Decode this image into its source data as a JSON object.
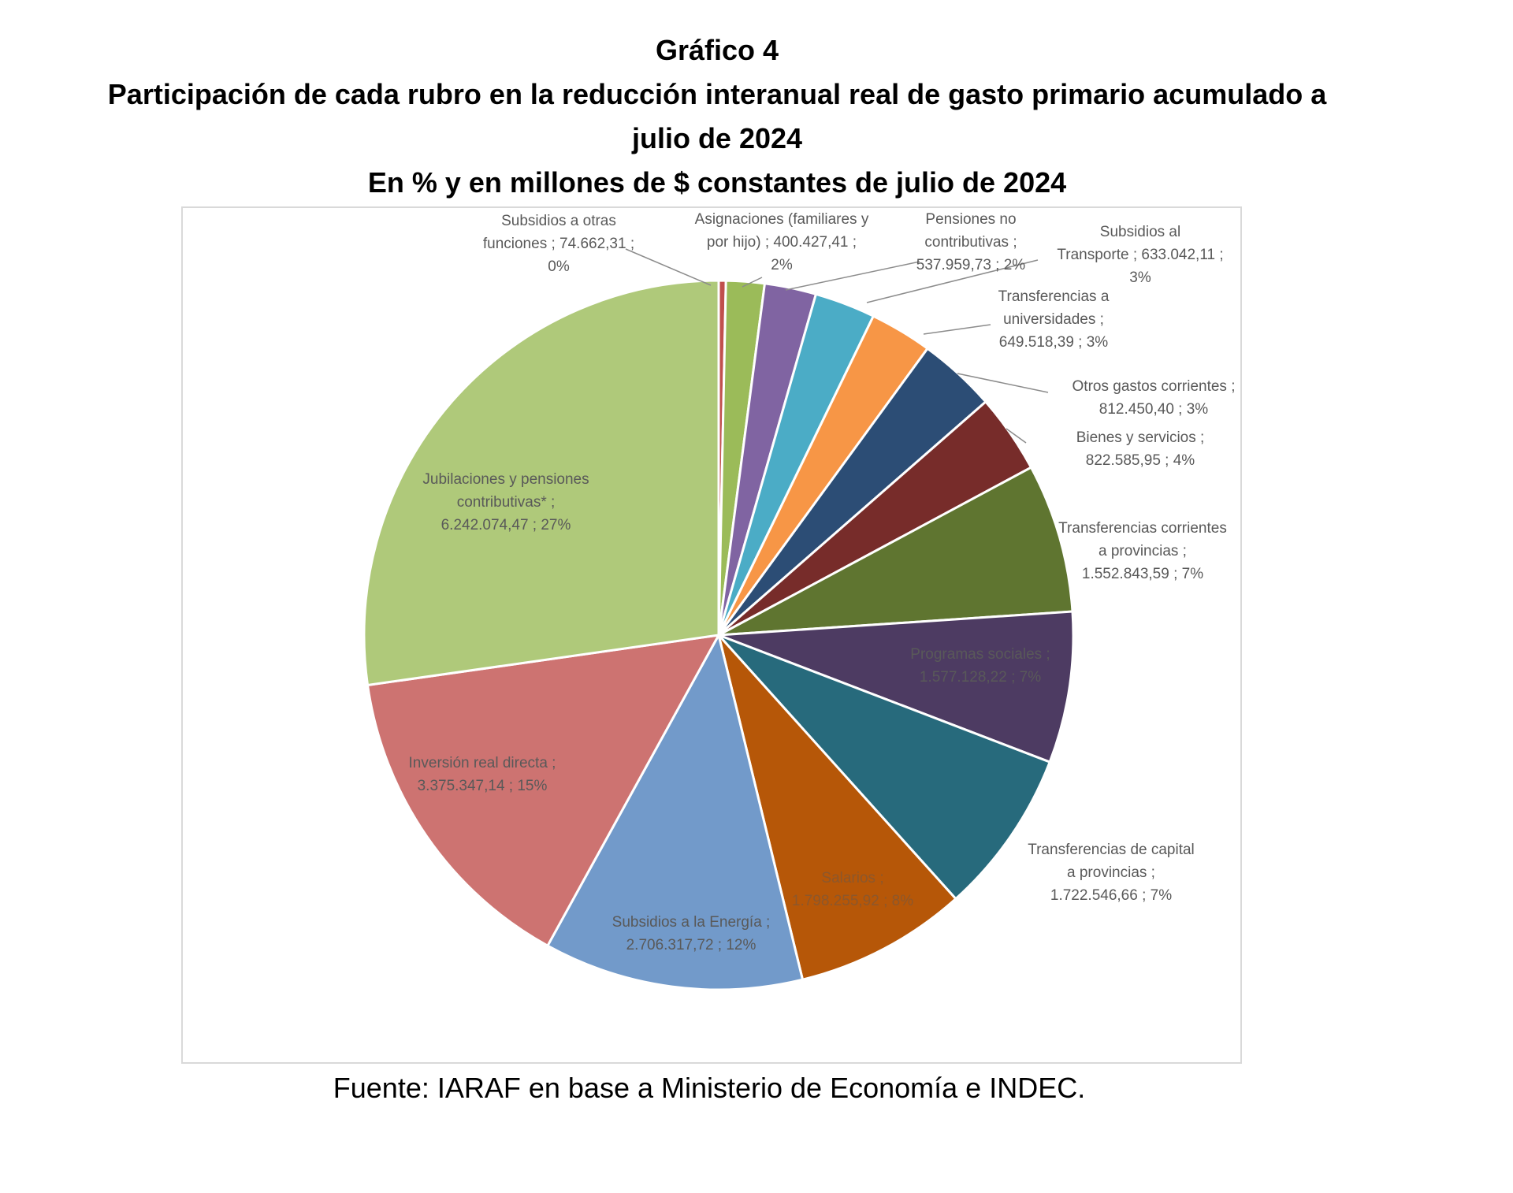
{
  "header": {
    "figure_number": "Gráfico 4",
    "title_line1": "Participación de cada rubro en la reducción interanual real de gasto primario acumulado a",
    "title_line2": "julio de 2024",
    "subtitle": "En % y en millones de $ constantes de julio de 2024"
  },
  "footer": {
    "source": "Fuente: IARAF en base a Ministerio de Economía e INDEC."
  },
  "chart_data": {
    "type": "pie",
    "title": "Participación de cada rubro en la reducción interanual real de gasto primario acumulado a julio de 2024",
    "subtitle": "En % y en millones de $ constantes de julio de 2024",
    "slices": [
      {
        "label": "Subsidios a otras funciones",
        "value": 74662.31,
        "percent": "0%",
        "color": "#c0504d"
      },
      {
        "label": "Asignaciones (familiares y por hijo)",
        "value": 400427.41,
        "percent": "2%",
        "color": "#9bbb59"
      },
      {
        "label": "Pensiones no contributivas",
        "value": 537959.73,
        "percent": "2%",
        "color": "#8064a2"
      },
      {
        "label": "Subsidios al Transporte",
        "value": 633042.11,
        "percent": "3%",
        "color": "#4bacc6"
      },
      {
        "label": "Transferencias a universidades",
        "value": 649518.39,
        "percent": "3%",
        "color": "#f79646"
      },
      {
        "label": "Otros gastos corrientes",
        "value": 812450.4,
        "percent": "3%",
        "color": "#2c4d75"
      },
      {
        "label": "Bienes y servicios",
        "value": 822585.95,
        "percent": "4%",
        "color": "#772c2a"
      },
      {
        "label": "Transferencias corrientes a provincias",
        "value": 1552843.59,
        "percent": "7%",
        "color": "#5f7530"
      },
      {
        "label": "Programas sociales",
        "value": 1577128.22,
        "percent": "7%",
        "color": "#4d3b62"
      },
      {
        "label": "Transferencias de capital a provincias",
        "value": 1722546.66,
        "percent": "7%",
        "color": "#276a7c"
      },
      {
        "label": "Salarios",
        "value": 1798255.92,
        "percent": "8%",
        "color": "#b65708"
      },
      {
        "label": "Subsidios a la Energía",
        "value": 2706317.72,
        "percent": "12%",
        "color": "#729aca"
      },
      {
        "label": "Inversión real directa",
        "value": 3375347.14,
        "percent": "15%",
        "color": "#cd7371"
      },
      {
        "label": "Jubilaciones y pensiones contributivas*",
        "value": 6242074.47,
        "percent": "27%",
        "color": "#afc97a"
      }
    ],
    "data_labels": [
      [
        "Subsidios a otras",
        "funciones ;  74.662,31 ;",
        "0%"
      ],
      [
        "Asignaciones (familiares y",
        "por hijo) ;  400.427,41 ;",
        "2%"
      ],
      [
        "Pensiones no",
        "contributivas ;",
        "537.959,73 ; 2%"
      ],
      [
        "Subsidios al",
        "Transporte ;  633.042,11 ;",
        "3%"
      ],
      [
        "Transferencias a",
        "universidades ;",
        "649.518,39 ; 3%"
      ],
      [
        "Otros gastos corrientes ;",
        "812.450,40 ; 3%"
      ],
      [
        "Bienes y servicios ;",
        "822.585,95 ; 4%"
      ],
      [
        "Transferencias corrientes",
        "a provincias ;",
        "1.552.843,59 ; 7%"
      ],
      [
        "Programas sociales ;",
        "1.577.128,22 ; 7%"
      ],
      [
        "Transferencias de capital",
        "a provincias ;",
        "1.722.546,66 ; 7%"
      ],
      [
        "Salarios ;",
        "1.798.255,92 ; 8%"
      ],
      [
        "Subsidios a la Energía ;",
        "2.706.317,72 ; 12%"
      ],
      [
        "Inversión real directa ;",
        "3.375.347,14 ; 15%"
      ],
      [
        "Jubilaciones y pensiones",
        "contributivas* ;",
        "6.242.074,47 ; 27%"
      ]
    ],
    "legend": "none",
    "start_angle": "12 o'clock",
    "direction": "clockwise"
  }
}
